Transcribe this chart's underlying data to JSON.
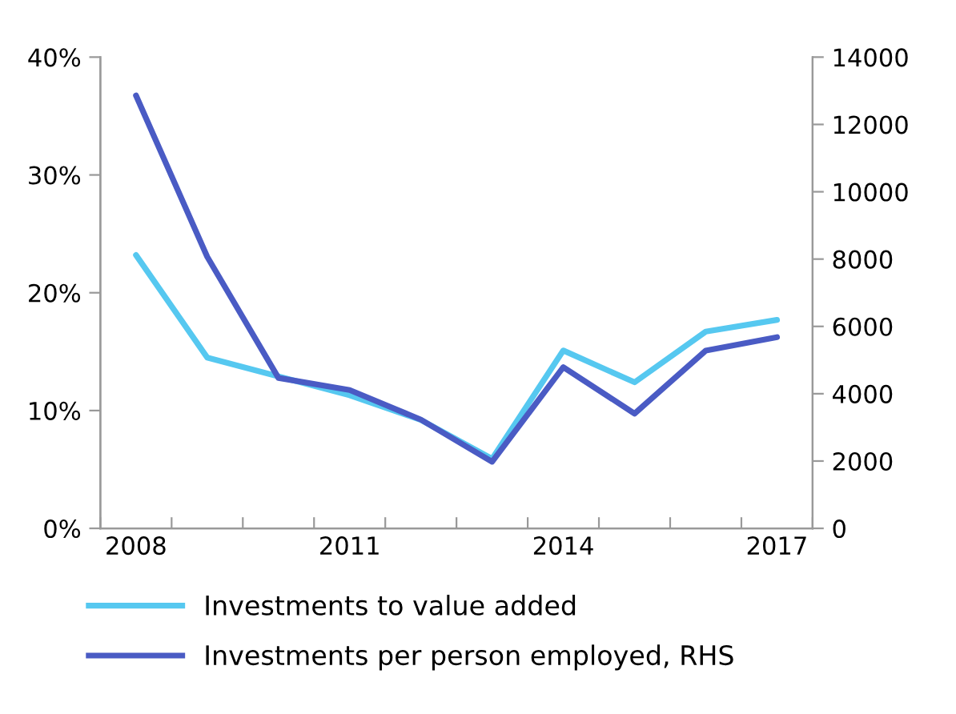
{
  "chart_data": {
    "type": "line",
    "categories": [
      "2008",
      null,
      null,
      "2011",
      null,
      null,
      "2014",
      null,
      null,
      "2017"
    ],
    "series": [
      {
        "name": "Investments to value added",
        "color": "#56c8f0",
        "values": [
          23.2,
          14.5,
          12.9,
          11.3,
          9.2,
          5.9,
          15.1,
          12.4,
          16.7,
          17.7
        ]
      },
      {
        "name": "Investments per person employed, RHS",
        "color": "#4a5bc4",
        "axis": "y2",
        "values": [
          12860,
          8070,
          4470,
          4110,
          3230,
          1980,
          4790,
          3410,
          5280,
          5680
        ]
      }
    ],
    "ylim": [
      0,
      40
    ],
    "yticks": [
      {
        "value": 0,
        "label": "0%"
      },
      {
        "value": 10,
        "label": "10%"
      },
      {
        "value": 20,
        "label": "20%"
      },
      {
        "value": 30,
        "label": "30%"
      },
      {
        "value": 40,
        "label": "40%"
      }
    ],
    "y2lim": [
      0,
      14000
    ],
    "y2ticks": [
      0,
      2000,
      4000,
      6000,
      8000,
      10000,
      12000,
      14000
    ],
    "grid": false,
    "legend": "bottom",
    "marker": "none",
    "line_style": "solid"
  }
}
